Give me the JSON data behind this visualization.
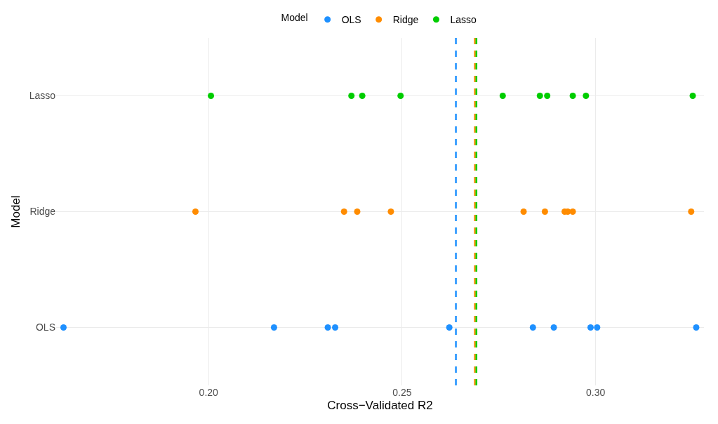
{
  "chart_data": {
    "type": "scatter",
    "xlabel": "Cross−Validated R2",
    "ylabel": "Model",
    "legend_title": "Model",
    "orientation": "horizontal",
    "categories": [
      "Lasso",
      "Ridge",
      "OLS"
    ],
    "series": [
      {
        "name": "OLS",
        "color": "#1e90ff",
        "values": [
          null,
          null,
          0.1625
        ]
      },
      {
        "color": "#1e90ff",
        "values": [
          null,
          null,
          0.2169
        ]
      },
      {
        "color": "#1e90ff",
        "values": [
          null,
          null,
          0.2308
        ]
      },
      {
        "color": "#1e90ff",
        "values": [
          null,
          null,
          0.2327
        ]
      },
      {
        "color": "#1e90ff",
        "values": [
          null,
          null,
          0.2622
        ]
      },
      {
        "color": "#1e90ff",
        "values": [
          null,
          null,
          0.2838
        ]
      },
      {
        "color": "#1e90ff",
        "values": [
          null,
          null,
          0.2892
        ]
      },
      {
        "color": "#1e90ff",
        "values": [
          null,
          null,
          0.2987
        ]
      },
      {
        "color": "#1e90ff",
        "values": [
          null,
          null,
          0.3004
        ]
      },
      {
        "color": "#1e90ff",
        "values": [
          null,
          null,
          0.326
        ]
      },
      {
        "name": "Ridge",
        "color": "#ff8c00",
        "values": [
          null,
          0.1966,
          null
        ]
      },
      {
        "color": "#ff8c00",
        "values": [
          null,
          0.235,
          null
        ]
      },
      {
        "color": "#ff8c00",
        "values": [
          null,
          0.2384,
          null
        ]
      },
      {
        "color": "#ff8c00",
        "values": [
          null,
          0.2471,
          null
        ]
      },
      {
        "color": "#ff8c00",
        "values": [
          null,
          0.2814,
          null
        ]
      },
      {
        "color": "#ff8c00",
        "values": [
          null,
          0.2869,
          null
        ]
      },
      {
        "color": "#ff8c00",
        "values": [
          null,
          0.292,
          null
        ]
      },
      {
        "color": "#ff8c00",
        "values": [
          null,
          0.2928,
          null
        ]
      },
      {
        "color": "#ff8c00",
        "values": [
          null,
          0.2941,
          null
        ]
      },
      {
        "color": "#ff8c00",
        "values": [
          null,
          0.3247,
          null
        ]
      },
      {
        "name": "Lasso",
        "color": "#00cd00",
        "values": [
          0.2006,
          null,
          null
        ]
      },
      {
        "color": "#00cd00",
        "values": [
          0.2369,
          null,
          null
        ]
      },
      {
        "color": "#00cd00",
        "values": [
          0.2397,
          null,
          null
        ]
      },
      {
        "color": "#00cd00",
        "values": [
          0.2496,
          null,
          null
        ]
      },
      {
        "color": "#00cd00",
        "values": [
          0.276,
          null,
          null
        ]
      },
      {
        "color": "#00cd00",
        "values": [
          0.2856,
          null,
          null
        ]
      },
      {
        "color": "#00cd00",
        "values": [
          0.2875,
          null,
          null
        ]
      },
      {
        "color": "#00cd00",
        "values": [
          0.2941,
          null,
          null
        ]
      },
      {
        "color": "#00cd00",
        "values": [
          0.2975,
          null,
          null
        ]
      },
      {
        "color": "#00cd00",
        "values": [
          0.3251,
          null,
          null
        ]
      }
    ],
    "ref_lines": [
      {
        "axis": "x",
        "value": 0.2639,
        "color": "#1e90ff",
        "line_style": "dashed"
      },
      {
        "axis": "x",
        "value": 0.2688,
        "color": "#ff8c00",
        "line_style": "dashed"
      },
      {
        "axis": "x",
        "value": 0.2692,
        "color": "#00cd00",
        "line_style": "dashed"
      }
    ],
    "xlim": [
      0.1606,
      0.328
    ],
    "xticks": [
      {
        "value": 0.2,
        "label": "0.20"
      },
      {
        "value": 0.25,
        "label": "0.25"
      },
      {
        "value": 0.3,
        "label": "0.30"
      }
    ],
    "grid": true,
    "legend": "top",
    "marker": "circle"
  }
}
